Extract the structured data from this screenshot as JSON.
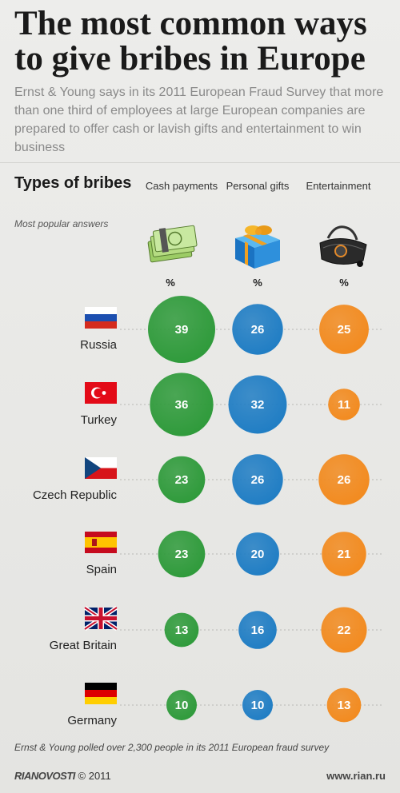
{
  "title": "The most common ways to give bribes in Europe",
  "subtitle": "Ernst & Young says in its 2011 European Fraud Survey that more than one third of employees at large European companies are prepared to offer cash or lavish gifts and entertainment to win business",
  "types_heading": "Types of bribes",
  "popular_note": "Most popular answers",
  "percent_symbol": "%",
  "footnote": "Ernst & Young polled over 2,300 people in its 2011 European fraud survey",
  "brand": {
    "ria_logo": "RIANOVOSTI",
    "copyright": "© 2011"
  },
  "website": "www.rian.ru",
  "icons": [
    "cash-money-icon",
    "gift-box-icon",
    "travel-bag-icon"
  ],
  "colors": {
    "cash": "#2e9a3a",
    "gifts": "#1f7dc4",
    "entertainment": "#f28a1e"
  },
  "chart_data": {
    "type": "bubble",
    "categories": [
      "Russia",
      "Turkey",
      "Czech Republic",
      "Spain",
      "Great Britain",
      "Germany"
    ],
    "series": [
      {
        "name": "Cash payments",
        "values": [
          39,
          36,
          23,
          23,
          13,
          10
        ]
      },
      {
        "name": "Personal gifts",
        "values": [
          26,
          32,
          26,
          20,
          16,
          10
        ]
      },
      {
        "name": "Entertainment",
        "values": [
          25,
          11,
          26,
          21,
          22,
          13
        ]
      }
    ],
    "unit": "%"
  }
}
